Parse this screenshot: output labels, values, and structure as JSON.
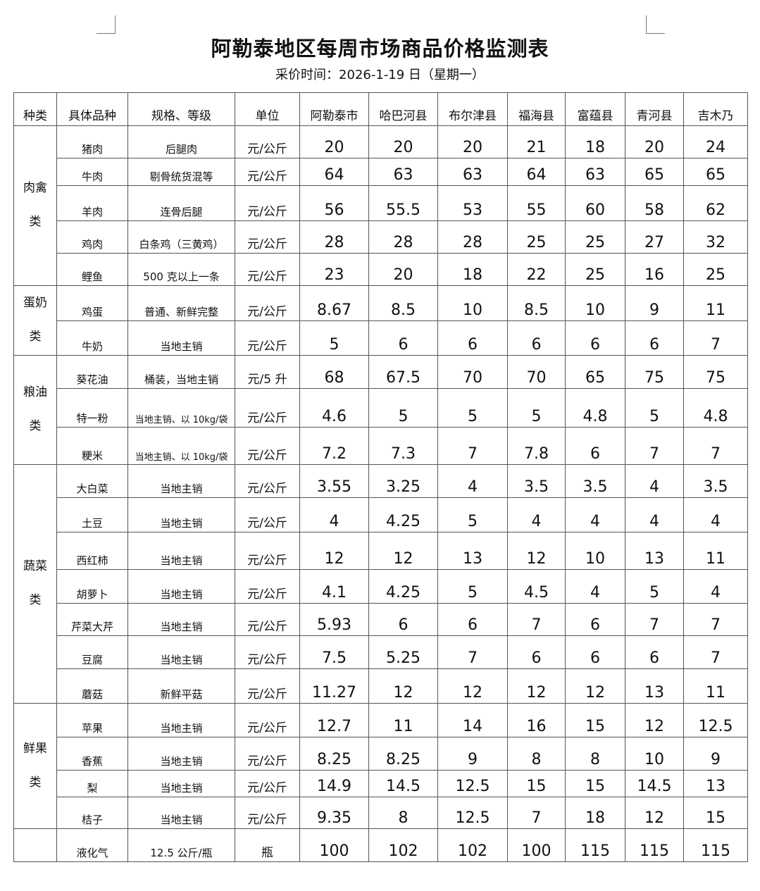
{
  "title": "阿勒泰地区每周市场商品价格监测表",
  "subtitle": "采价时间：2026-1-19 日（星期一）",
  "headers": [
    "种类",
    "具体品种",
    "规格、等级",
    "单位",
    "阿勒泰市",
    "哈巴河县",
    "布尔津县",
    "福海县",
    "富蕴县",
    "青河县",
    "吉木乃"
  ],
  "groups": [
    {
      "name": "肉禽类",
      "items": [
        {
          "name": "猪肉",
          "spec": "后腿肉",
          "unit": "元/公斤",
          "prices": [
            "20",
            "20",
            "20",
            "21",
            "18",
            "20",
            "24"
          ]
        },
        {
          "name": "牛肉",
          "spec": "剔骨统货混等",
          "unit": "元/公斤",
          "prices": [
            "64",
            "63",
            "63",
            "64",
            "63",
            "65",
            "65"
          ]
        },
        {
          "name": "羊肉",
          "spec": "连骨后腿",
          "unit": "元/公斤",
          "prices": [
            "56",
            "55.5",
            "53",
            "55",
            "60",
            "58",
            "62"
          ]
        },
        {
          "name": "鸡肉",
          "spec": "白条鸡（三黄鸡）",
          "unit": "元/公斤",
          "prices": [
            "28",
            "28",
            "28",
            "25",
            "25",
            "27",
            "32"
          ]
        },
        {
          "name": "鲤鱼",
          "spec": "500 克以上一条",
          "unit": "元/公斤",
          "prices": [
            "23",
            "20",
            "18",
            "22",
            "25",
            "16",
            "25"
          ]
        }
      ]
    },
    {
      "name": "蛋奶类",
      "items": [
        {
          "name": "鸡蛋",
          "spec": "普通、新鲜完整",
          "unit": "元/公斤",
          "prices": [
            "8.67",
            "8.5",
            "10",
            "8.5",
            "10",
            "9",
            "11"
          ]
        },
        {
          "name": "牛奶",
          "spec": "当地主销",
          "unit": "元/公斤",
          "prices": [
            "5",
            "6",
            "6",
            "6",
            "6",
            "6",
            "7"
          ]
        }
      ]
    },
    {
      "name": "粮油类",
      "items": [
        {
          "name": "葵花油",
          "spec": "桶装，当地主销",
          "unit": "元/5 升",
          "prices": [
            "68",
            "67.5",
            "70",
            "70",
            "65",
            "75",
            "75"
          ]
        },
        {
          "name": "特一粉",
          "spec": "当地主销、以 10kg/袋",
          "unit": "元/公斤",
          "prices": [
            "4.6",
            "5",
            "5",
            "5",
            "4.8",
            "5",
            "4.8"
          ]
        },
        {
          "name": "粳米",
          "spec": "当地主销、以 10kg/袋",
          "unit": "元/公斤",
          "prices": [
            "7.2",
            "7.3",
            "7",
            "7.8",
            "6",
            "7",
            "7"
          ]
        }
      ]
    },
    {
      "name": "蔬菜类",
      "items": [
        {
          "name": "大白菜",
          "spec": "当地主销",
          "unit": "元/公斤",
          "prices": [
            "3.55",
            "3.25",
            "4",
            "3.5",
            "3.5",
            "4",
            "3.5"
          ]
        },
        {
          "name": "土豆",
          "spec": "当地主销",
          "unit": "元/公斤",
          "prices": [
            "4",
            "4.25",
            "5",
            "4",
            "4",
            "4",
            "4"
          ]
        },
        {
          "name": "西红柿",
          "spec": "当地主销",
          "unit": "元/公斤",
          "prices": [
            "12",
            "12",
            "13",
            "12",
            "10",
            "13",
            "11"
          ]
        },
        {
          "name": "胡萝卜",
          "spec": "当地主销",
          "unit": "元/公斤",
          "prices": [
            "4.1",
            "4.25",
            "5",
            "4.5",
            "4",
            "5",
            "4"
          ]
        },
        {
          "name": "芹菜大芹",
          "spec": "当地主销",
          "unit": "元/公斤",
          "prices": [
            "5.93",
            "6",
            "6",
            "7",
            "6",
            "7",
            "7"
          ]
        },
        {
          "name": "豆腐",
          "spec": "当地主销",
          "unit": "元/公斤",
          "prices": [
            "7.5",
            "5.25",
            "7",
            "6",
            "6",
            "6",
            "7"
          ]
        },
        {
          "name": "蘑菇",
          "spec": "新鲜平菇",
          "unit": "元/公斤",
          "prices": [
            "11.27",
            "12",
            "12",
            "12",
            "12",
            "13",
            "11"
          ]
        }
      ]
    },
    {
      "name": "鲜果类",
      "items": [
        {
          "name": "苹果",
          "spec": "当地主销",
          "unit": "元/公斤",
          "prices": [
            "12.7",
            "11",
            "14",
            "16",
            "15",
            "12",
            "12.5"
          ]
        },
        {
          "name": "香蕉",
          "spec": "当地主销",
          "unit": "元/公斤",
          "prices": [
            "8.25",
            "8.25",
            "9",
            "8",
            "8",
            "10",
            "9"
          ]
        },
        {
          "name": "梨",
          "spec": "当地主销",
          "unit": "元/公斤",
          "prices": [
            "14.9",
            "14.5",
            "12.5",
            "15",
            "15",
            "14.5",
            "13"
          ]
        },
        {
          "name": "桔子",
          "spec": "当地主销",
          "unit": "元/公斤",
          "prices": [
            "9.35",
            "8",
            "12.5",
            "7",
            "18",
            "12",
            "15"
          ]
        }
      ]
    },
    {
      "name": "",
      "items": [
        {
          "name": "液化气",
          "spec": "12.5 公斤/瓶",
          "unit": "瓶",
          "prices": [
            "100",
            "102",
            "102",
            "100",
            "115",
            "115",
            "115"
          ]
        }
      ]
    }
  ]
}
